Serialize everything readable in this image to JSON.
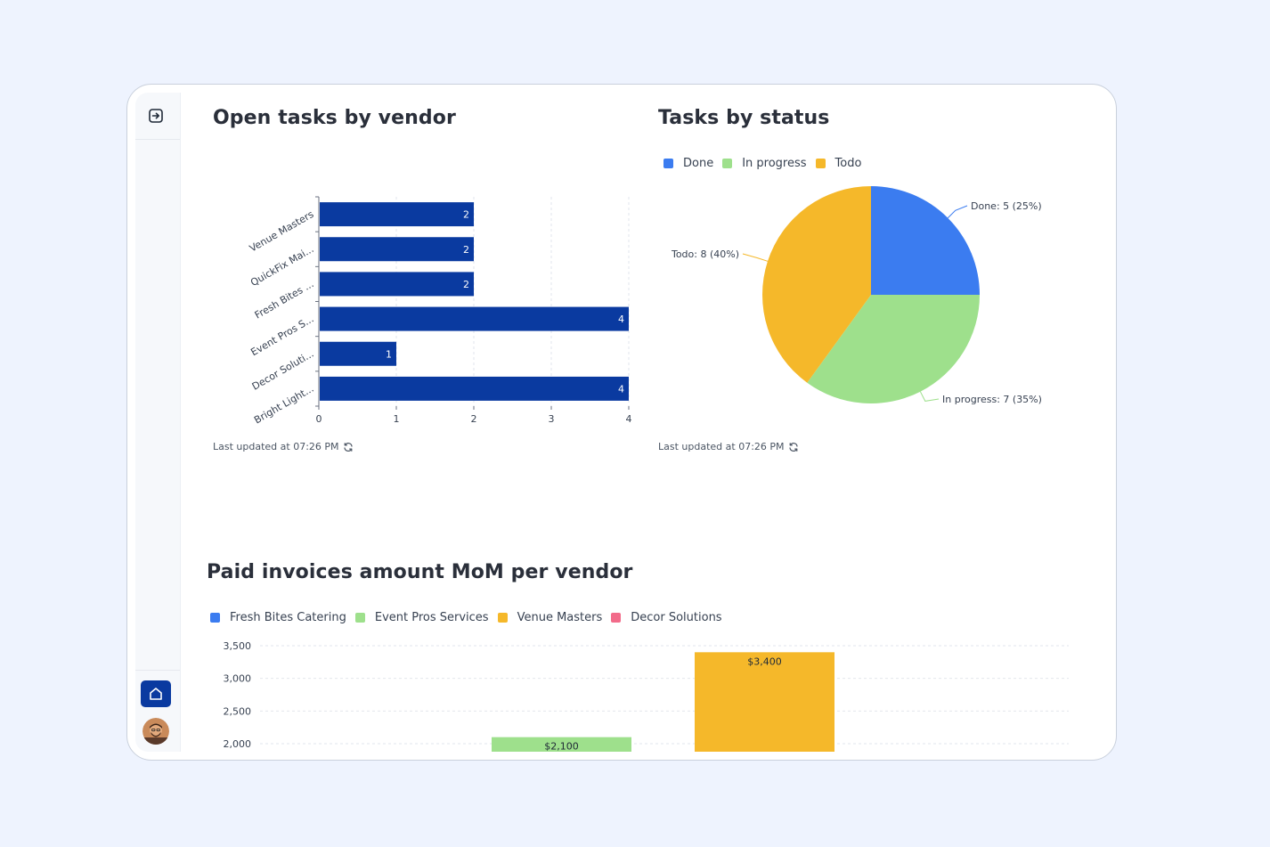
{
  "sidebar": {
    "expand_icon": "expand-panel-icon",
    "home_icon": "home-icon",
    "avatar": "user-avatar"
  },
  "vendor_panel": {
    "title": "Open tasks by vendor",
    "updated": "Last updated at 07:26 PM",
    "refresh_icon": "refresh-icon"
  },
  "status_panel": {
    "title": "Tasks by status",
    "updated": "Last updated at 07:26 PM",
    "refresh_icon": "refresh-icon"
  },
  "invoice_panel": {
    "title": "Paid invoices amount MoM per vendor"
  },
  "colors": {
    "bar": "#0a3aa0",
    "done": "#3b7cf0",
    "in_progress": "#9ee08c",
    "todo": "#f5b82a",
    "decor": "#f26b8a"
  },
  "chart_data": [
    {
      "type": "bar",
      "orientation": "horizontal",
      "title": "Open tasks by vendor",
      "categories": [
        "Venue Masters",
        "QuickFix Mai...",
        "Fresh Bites ...",
        "Event Pros S...",
        "Decor Soluti...",
        "Bright Light..."
      ],
      "values": [
        2,
        2,
        2,
        4,
        1,
        4
      ],
      "xticks": [
        "0",
        "1",
        "2",
        "3",
        "4"
      ],
      "xlim": [
        0,
        4
      ],
      "grid": true
    },
    {
      "type": "pie",
      "title": "Tasks by status",
      "legend": [
        "Done",
        "In progress",
        "Todo"
      ],
      "legend_position": "top-left",
      "slices": [
        {
          "name": "Done",
          "value": 5,
          "label": "Done: 5 (25%)"
        },
        {
          "name": "In progress",
          "value": 7,
          "label": "In progress: 7 (35%)"
        },
        {
          "name": "Todo",
          "value": 8,
          "label": "Todo: 8 (40%)"
        }
      ]
    },
    {
      "type": "bar",
      "title": "Paid invoices amount MoM per vendor",
      "legend": [
        "Fresh Bites Catering",
        "Event Pros Services",
        "Venue Masters",
        "Decor Solutions"
      ],
      "legend_position": "top-left",
      "yticks": [
        "2,000",
        "2,500",
        "3,000",
        "3,500"
      ],
      "ylim": [
        2000,
        3500
      ],
      "bars": [
        {
          "series": "Event Pros Services",
          "value": 2100,
          "label": "$2,100"
        },
        {
          "series": "Venue Masters",
          "value": 3400,
          "label": "$3,400"
        }
      ],
      "grid": true
    }
  ]
}
